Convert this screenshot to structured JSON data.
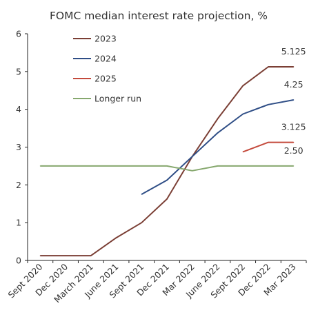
{
  "chart_data": {
    "type": "line",
    "title": "FOMC median interest rate projection, %",
    "xlabel": "",
    "ylabel": "",
    "categories": [
      "Sept 2020",
      "Dec 2020",
      "March 2021",
      "June 2021",
      "Sept 2021",
      "Dec 2021",
      "Mar 2022",
      "June 2022",
      "Sept 2022",
      "Dec 2022",
      "Mar 2023"
    ],
    "yticks": [
      "0",
      "1",
      "2",
      "3",
      "4",
      "5",
      "6"
    ],
    "ylim": [
      0,
      6
    ],
    "grid": false,
    "legend_position": "top-left",
    "series": [
      {
        "name": "2023",
        "color": "#7b3f35",
        "values": [
          0.125,
          0.125,
          0.125,
          0.6,
          1.0,
          1.625,
          2.75,
          3.75,
          4.625,
          5.125,
          5.125
        ],
        "end_label": "5.125"
      },
      {
        "name": "2024",
        "color": "#2f4e86",
        "values": [
          null,
          null,
          null,
          null,
          1.75,
          2.125,
          2.75,
          3.375,
          3.875,
          4.125,
          4.25
        ],
        "end_label": "4.25"
      },
      {
        "name": "2025",
        "color": "#c44a3c",
        "values": [
          null,
          null,
          null,
          null,
          null,
          null,
          null,
          null,
          2.875,
          3.125,
          3.125
        ],
        "end_label": "3.125"
      },
      {
        "name": "Longer run",
        "color": "#86a86e",
        "values": [
          2.5,
          2.5,
          2.5,
          2.5,
          2.5,
          2.5,
          2.375,
          2.5,
          2.5,
          2.5,
          2.5
        ],
        "end_label": "2.50"
      }
    ]
  }
}
